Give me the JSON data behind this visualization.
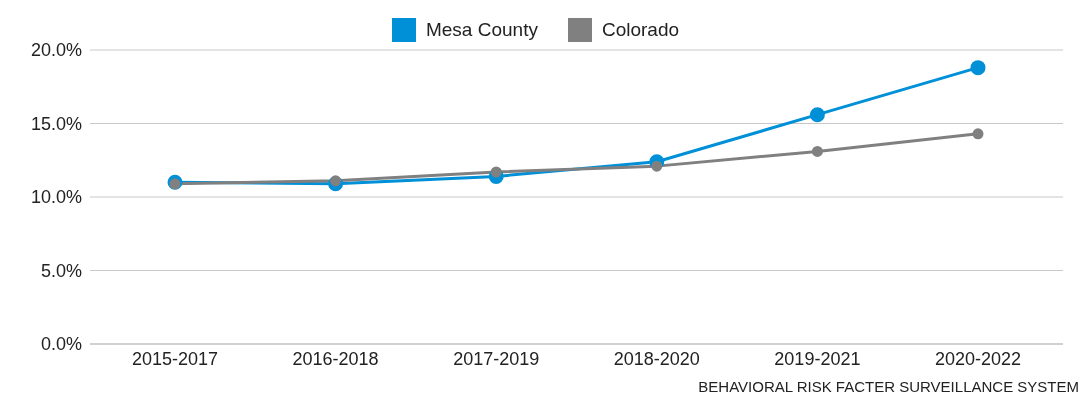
{
  "chart_data": {
    "type": "line",
    "categories": [
      "2015-2017",
      "2016-2018",
      "2017-2019",
      "2018-2020",
      "2019-2021",
      "2020-2022"
    ],
    "series": [
      {
        "name": "Mesa County",
        "color": "#0090d8",
        "values": [
          11.0,
          10.9,
          11.4,
          12.4,
          15.6,
          18.8
        ]
      },
      {
        "name": "Colorado",
        "color": "#808080",
        "values": [
          10.9,
          11.1,
          11.7,
          12.1,
          13.1,
          14.3
        ]
      }
    ],
    "ylim": [
      0,
      20
    ],
    "yticks": [
      {
        "value": 0,
        "label": "0.0%"
      },
      {
        "value": 5,
        "label": "5.0%"
      },
      {
        "value": 10,
        "label": "10.0%"
      },
      {
        "value": 15,
        "label": "15.0%"
      },
      {
        "value": 20,
        "label": "20.0%"
      }
    ],
    "grid": "y",
    "legend": "top",
    "marker": "circle",
    "line_style": "solid",
    "annotations": [
      "BEHAVIORAL RISK FACTER SURVEILLANCE SYSTEM"
    ]
  }
}
